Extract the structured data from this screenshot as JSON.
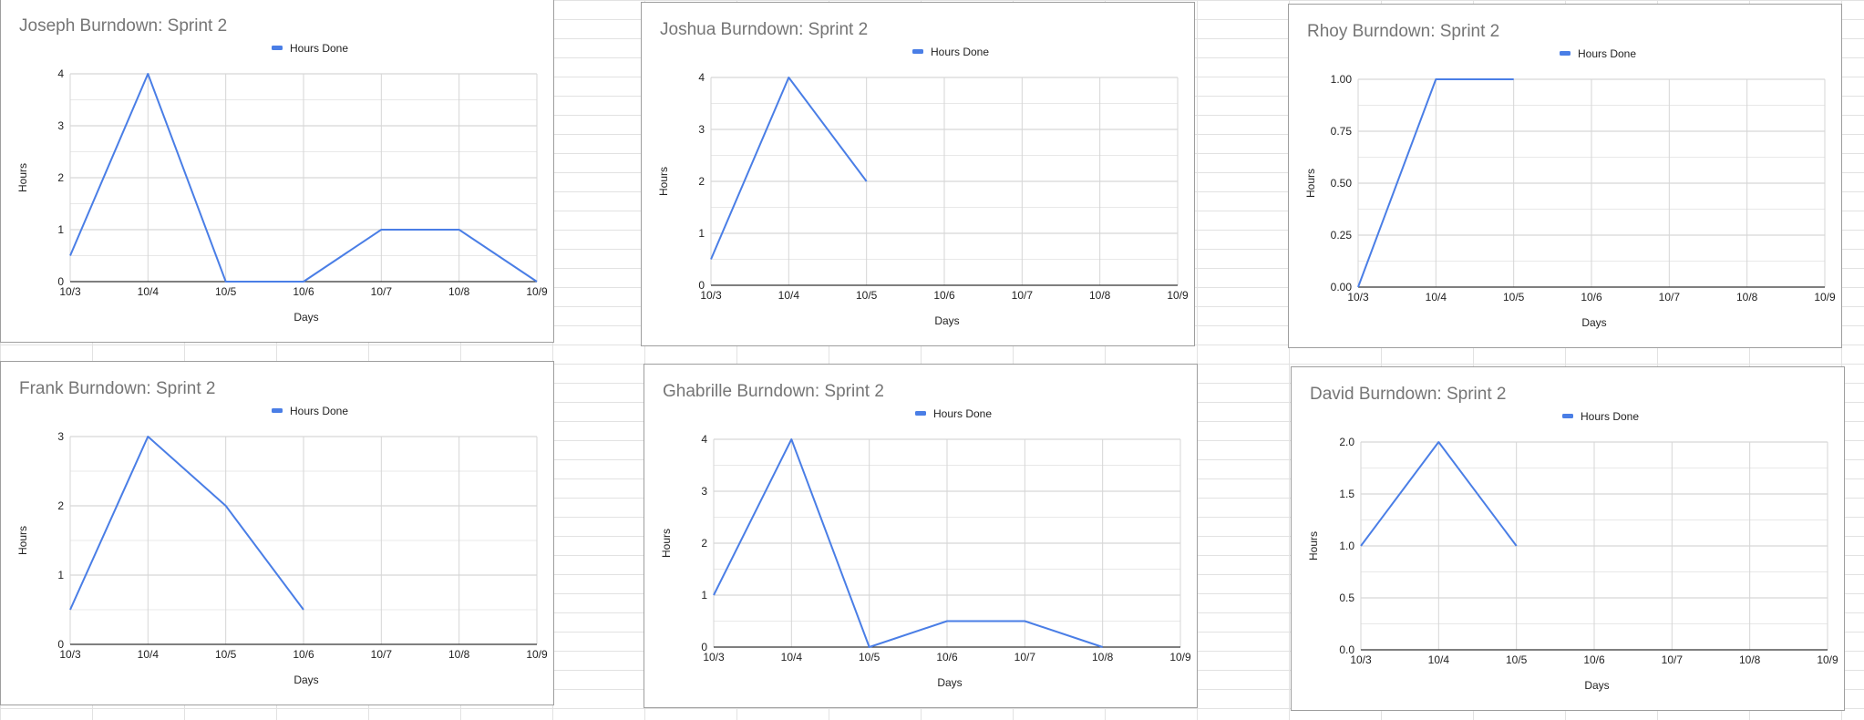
{
  "colors": {
    "series": "#4a7ee6",
    "title": "#757575",
    "grid": "#d9d9d9",
    "axis": "#333333",
    "text": "#222222"
  },
  "chart_data": [
    {
      "type": "line",
      "title": "Joseph Burndown: Sprint 2",
      "xlabel": "Days",
      "ylabel": "Hours",
      "categories": [
        "10/3",
        "10/4",
        "10/5",
        "10/6",
        "10/7",
        "10/8",
        "10/9"
      ],
      "series": [
        {
          "name": "Hours Done",
          "values": [
            0.5,
            4,
            0,
            0,
            1,
            1,
            0
          ]
        }
      ],
      "ylim": [
        0,
        4
      ],
      "yticks": [
        "0",
        "1",
        "2",
        "3",
        "4"
      ],
      "legend": "top",
      "grid": true
    },
    {
      "type": "line",
      "title": "Joshua Burndown: Sprint 2",
      "xlabel": "Days",
      "ylabel": "Hours",
      "categories": [
        "10/3",
        "10/4",
        "10/5",
        "10/6",
        "10/7",
        "10/8",
        "10/9"
      ],
      "series": [
        {
          "name": "Hours Done",
          "values": [
            0.5,
            4,
            2,
            null,
            null,
            null,
            null
          ]
        }
      ],
      "ylim": [
        0,
        4
      ],
      "yticks": [
        "0",
        "1",
        "2",
        "3",
        "4"
      ],
      "legend": "top",
      "grid": true
    },
    {
      "type": "line",
      "title": "Rhoy Burndown: Sprint 2",
      "xlabel": "Days",
      "ylabel": "Hours",
      "categories": [
        "10/3",
        "10/4",
        "10/5",
        "10/6",
        "10/7",
        "10/8",
        "10/9"
      ],
      "series": [
        {
          "name": "Hours Done",
          "values": [
            0,
            1,
            1,
            null,
            null,
            null,
            null
          ]
        }
      ],
      "ylim": [
        0,
        1
      ],
      "yticks": [
        "0.00",
        "0.25",
        "0.50",
        "0.75",
        "1.00"
      ],
      "legend": "top",
      "grid": true
    },
    {
      "type": "line",
      "title": "Frank Burndown: Sprint 2",
      "xlabel": "Days",
      "ylabel": "Hours",
      "categories": [
        "10/3",
        "10/4",
        "10/5",
        "10/6",
        "10/7",
        "10/8",
        "10/9"
      ],
      "series": [
        {
          "name": "Hours Done",
          "values": [
            0.5,
            3,
            2,
            0.5,
            null,
            null,
            null
          ]
        }
      ],
      "ylim": [
        0,
        3
      ],
      "yticks": [
        "0",
        "1",
        "2",
        "3"
      ],
      "legend": "top",
      "grid": true
    },
    {
      "type": "line",
      "title": "Ghabrille Burndown: Sprint 2",
      "xlabel": "Days",
      "ylabel": "Hours",
      "categories": [
        "10/3",
        "10/4",
        "10/5",
        "10/6",
        "10/7",
        "10/8",
        "10/9"
      ],
      "series": [
        {
          "name": "Hours Done",
          "values": [
            1,
            4,
            0,
            0.5,
            0.5,
            0,
            null
          ]
        }
      ],
      "ylim": [
        0,
        4
      ],
      "yticks": [
        "0",
        "1",
        "2",
        "3",
        "4"
      ],
      "legend": "top",
      "grid": true
    },
    {
      "type": "line",
      "title": "David Burndown: Sprint 2",
      "xlabel": "Days",
      "ylabel": "Hours",
      "categories": [
        "10/3",
        "10/4",
        "10/5",
        "10/6",
        "10/7",
        "10/8",
        "10/9"
      ],
      "series": [
        {
          "name": "Hours Done",
          "values": [
            1,
            2,
            1,
            null,
            null,
            null,
            null
          ]
        }
      ],
      "ylim": [
        0,
        2
      ],
      "yticks": [
        "0.0",
        "0.5",
        "1.0",
        "1.5",
        "2.0"
      ],
      "legend": "top",
      "grid": true
    }
  ]
}
